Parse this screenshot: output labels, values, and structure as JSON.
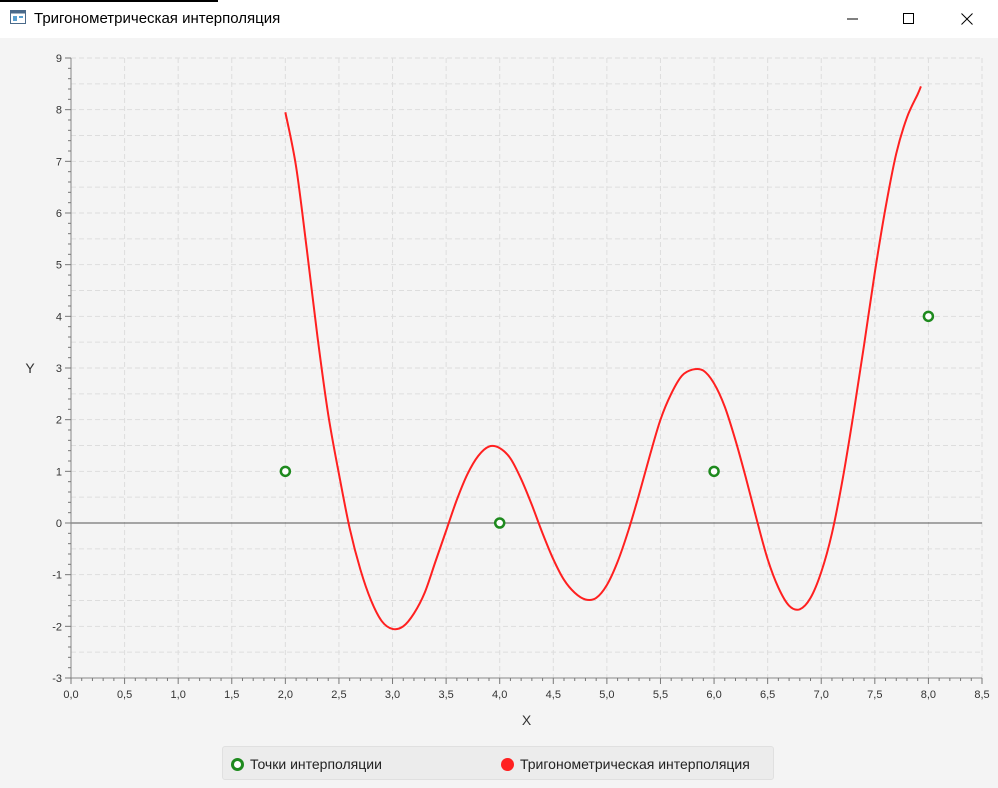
{
  "window": {
    "title": "Тригонометрическая интерполяция",
    "icon": "app-window-icon",
    "controls": [
      "minimize-icon",
      "maximize-icon",
      "close-icon"
    ]
  },
  "chart_data": {
    "type": "line",
    "title": "",
    "xlabel": "X",
    "ylabel": "Y",
    "xlim": [
      0,
      8.5
    ],
    "ylim": [
      -3,
      9
    ],
    "x_tick_step": 0.5,
    "x_tick_labels": [
      "0,0",
      "0,5",
      "1,0",
      "1,5",
      "2,0",
      "2,5",
      "3,0",
      "3,5",
      "4,0",
      "4,5",
      "5,0",
      "5,5",
      "6,0",
      "6,5",
      "7,0",
      "7,5",
      "8,0",
      "8,5"
    ],
    "y_ticks": [
      "-3",
      "-2",
      "-1",
      "0",
      "1",
      "2",
      "3",
      "4",
      "5",
      "6",
      "7",
      "8",
      "9"
    ],
    "grid": true,
    "legend_position": "bottom",
    "series": [
      {
        "name": "Точки интерполяции",
        "kind": "scatter",
        "color": "#1e8a1e",
        "points": [
          [
            2,
            1
          ],
          [
            4,
            0
          ],
          [
            6,
            1
          ],
          [
            8,
            4
          ]
        ]
      },
      {
        "name": "Тригонометрическая интерполяция",
        "kind": "line",
        "color": "#ff2020",
        "points": [
          [
            2.0,
            7.95
          ],
          [
            2.1,
            6.9
          ],
          [
            2.2,
            5.3
          ],
          [
            2.3,
            3.6
          ],
          [
            2.4,
            2.1
          ],
          [
            2.5,
            0.95
          ],
          [
            2.6,
            -0.1
          ],
          [
            2.7,
            -0.9
          ],
          [
            2.8,
            -1.5
          ],
          [
            2.9,
            -1.9
          ],
          [
            3.0,
            -2.05
          ],
          [
            3.1,
            -2.0
          ],
          [
            3.2,
            -1.75
          ],
          [
            3.3,
            -1.35
          ],
          [
            3.4,
            -0.75
          ],
          [
            3.5,
            -0.15
          ],
          [
            3.6,
            0.45
          ],
          [
            3.7,
            0.95
          ],
          [
            3.8,
            1.3
          ],
          [
            3.9,
            1.48
          ],
          [
            4.0,
            1.45
          ],
          [
            4.1,
            1.25
          ],
          [
            4.2,
            0.85
          ],
          [
            4.3,
            0.35
          ],
          [
            4.4,
            -0.2
          ],
          [
            4.5,
            -0.7
          ],
          [
            4.6,
            -1.1
          ],
          [
            4.7,
            -1.35
          ],
          [
            4.8,
            -1.48
          ],
          [
            4.9,
            -1.45
          ],
          [
            5.0,
            -1.2
          ],
          [
            5.1,
            -0.75
          ],
          [
            5.2,
            -0.15
          ],
          [
            5.3,
            0.55
          ],
          [
            5.4,
            1.3
          ],
          [
            5.5,
            2.0
          ],
          [
            5.6,
            2.5
          ],
          [
            5.7,
            2.85
          ],
          [
            5.8,
            2.97
          ],
          [
            5.9,
            2.95
          ],
          [
            6.0,
            2.7
          ],
          [
            6.1,
            2.25
          ],
          [
            6.2,
            1.6
          ],
          [
            6.3,
            0.85
          ],
          [
            6.4,
            0.05
          ],
          [
            6.5,
            -0.7
          ],
          [
            6.6,
            -1.25
          ],
          [
            6.7,
            -1.6
          ],
          [
            6.8,
            -1.67
          ],
          [
            6.9,
            -1.45
          ],
          [
            7.0,
            -0.95
          ],
          [
            7.1,
            -0.2
          ],
          [
            7.2,
            0.85
          ],
          [
            7.3,
            2.1
          ],
          [
            7.4,
            3.45
          ],
          [
            7.5,
            4.85
          ],
          [
            7.6,
            6.1
          ],
          [
            7.7,
            7.15
          ],
          [
            7.8,
            7.85
          ],
          [
            7.9,
            8.3
          ],
          [
            7.93,
            8.45
          ]
        ]
      }
    ]
  }
}
